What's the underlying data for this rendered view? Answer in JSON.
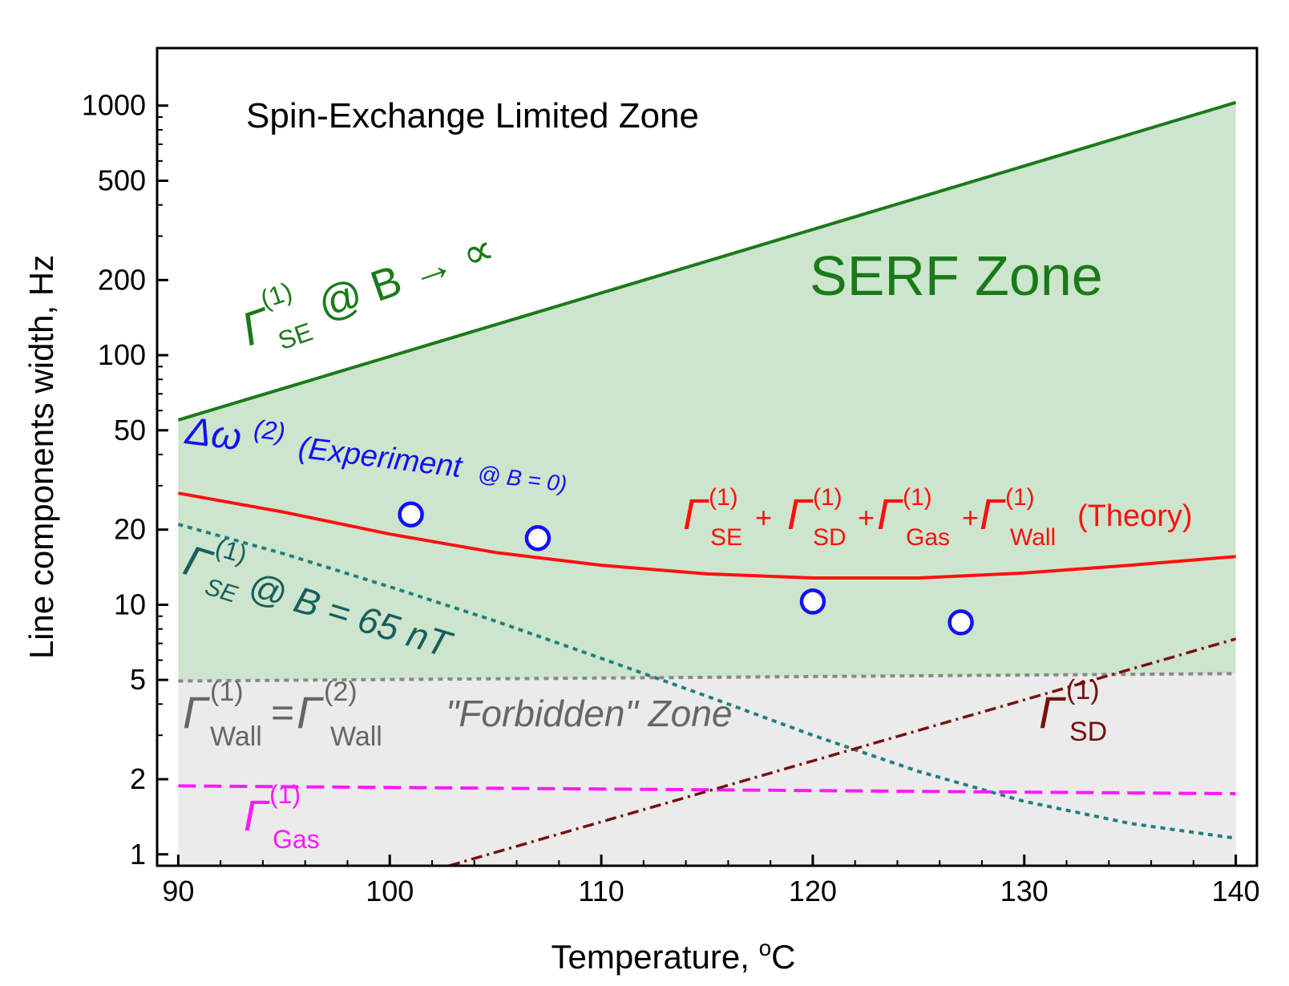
{
  "chart_data": {
    "type": "line",
    "title": "",
    "xlabel": "Temperature, °C",
    "ylabel": "Line components width, Hz",
    "xlim": [
      89,
      141
    ],
    "ylim": [
      0.9,
      1700
    ],
    "yscale": "log",
    "x_ticks": [
      90,
      100,
      110,
      120,
      130,
      140
    ],
    "y_ticks": [
      1,
      2,
      5,
      10,
      20,
      50,
      100,
      200,
      500,
      1000
    ],
    "regions": [
      {
        "name": "SERF Zone",
        "color": "#cde5cc",
        "upper": "gamma_se_inf",
        "lower": "gamma_wall_line"
      },
      {
        "name": "Forbidden Zone",
        "color": "#ebebeb",
        "upper": "gamma_wall_line",
        "lower": "axis_bottom"
      }
    ],
    "series": [
      {
        "id": "gamma_se_inf",
        "name": "Γ_SE(1) @ B → ∞",
        "style": "solid",
        "color": "#1a7a1a",
        "width": 4,
        "x": [
          90,
          140
        ],
        "y": [
          55,
          1030
        ]
      },
      {
        "id": "theory",
        "name": "Γ_SE(1) + Γ_SD(1) + Γ_Gas(1) + Γ_Wall(1) (Theory)",
        "style": "solid",
        "color": "#ff1010",
        "width": 4,
        "x": [
          90,
          95,
          100,
          105,
          110,
          115,
          120,
          125,
          130,
          135,
          140
        ],
        "y": [
          28,
          23.5,
          19.2,
          16.2,
          14.4,
          13.3,
          12.8,
          12.8,
          13.4,
          14.4,
          15.6
        ]
      },
      {
        "id": "gamma_se_65",
        "name": "Γ_SE(1) @ B = 65 nT",
        "style": "dotted",
        "color": "#1e8080",
        "width": 4,
        "x": [
          90,
          95,
          100,
          105,
          110,
          115,
          120,
          125,
          130,
          135,
          140
        ],
        "y": [
          21,
          16,
          11.8,
          8.6,
          6.1,
          4.3,
          3.0,
          2.15,
          1.63,
          1.33,
          1.16
        ]
      },
      {
        "id": "gamma_wall_line",
        "name": "Γ_Wall(1) = Γ_Wall(2)",
        "style": "dotted",
        "color": "#888888",
        "width": 4,
        "x": [
          90,
          140
        ],
        "y": [
          4.95,
          5.3
        ]
      },
      {
        "id": "gamma_gas",
        "name": "Γ_Gas(1)",
        "style": "dashed",
        "color": "#ff19ff",
        "width": 4,
        "x": [
          90,
          140
        ],
        "y": [
          1.88,
          1.75
        ]
      },
      {
        "id": "gamma_sd",
        "name": "Γ_SD(1)",
        "style": "dashdot",
        "color": "#7a0f0f",
        "width": 3.5,
        "x": [
          102.8,
          140
        ],
        "y": [
          0.9,
          7.3
        ]
      }
    ],
    "scatter": {
      "name": "Δω(2) (Experiment @ B = 0)",
      "color": "#1010ff",
      "x": [
        101,
        107,
        120,
        127
      ],
      "y": [
        23,
        18.5,
        10.3,
        8.5
      ]
    }
  },
  "labels": {
    "spin_exchange_zone": "Spin-Exchange Limited Zone",
    "serf_zone": "SERF Zone",
    "forbidden_zone": "\"Forbidden\" Zone",
    "gamma_symbol": "Γ",
    "delta_omega": "Δω",
    "sup_1": "(1)",
    "sup_2": "(2)",
    "sub_se": "SE",
    "sub_sd": "SD",
    "sub_gas": "Gas",
    "sub_wall": "Wall",
    "se_inf_tail": "@ B → ∝",
    "se_65_tail": "@ B = 65 nT",
    "exp_text": "(Experiment",
    "exp_at": "@ B = 0)",
    "plus": "+",
    "equals": "=",
    "theory": "(Theory)"
  }
}
